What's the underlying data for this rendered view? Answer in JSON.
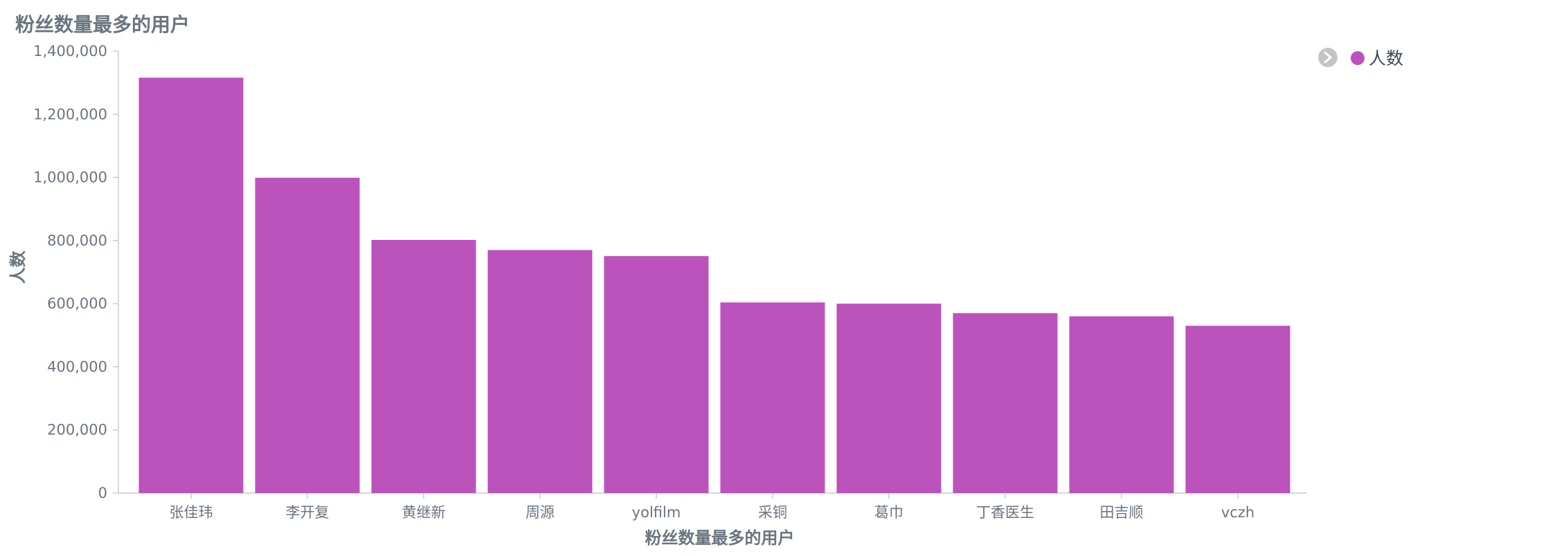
{
  "chart_data": {
    "type": "bar",
    "title": "粉丝数量最多的用户",
    "xlabel": "粉丝数量最多的用户",
    "ylabel": "人数",
    "categories": [
      "张佳玮",
      "李开复",
      "黄继新",
      "周源",
      "yolfilm",
      "采铜",
      "葛巾",
      "丁香医生",
      "田吉顺",
      "vczh"
    ],
    "series": [
      {
        "name": "人数",
        "color": "#bc52bc",
        "values": [
          1316000,
          999000,
          802000,
          770000,
          751000,
          604000,
          600000,
          570000,
          560000,
          530000
        ]
      }
    ],
    "ylim": [
      0,
      1400000
    ],
    "yticks": [
      "0",
      "200,000",
      "400,000",
      "600,000",
      "800,000",
      "1,000,000",
      "1,200,000",
      "1,400,000"
    ],
    "grid": false,
    "legend_position": "top-right",
    "legend_toggle_icon": "chevron-right-circle-icon"
  }
}
